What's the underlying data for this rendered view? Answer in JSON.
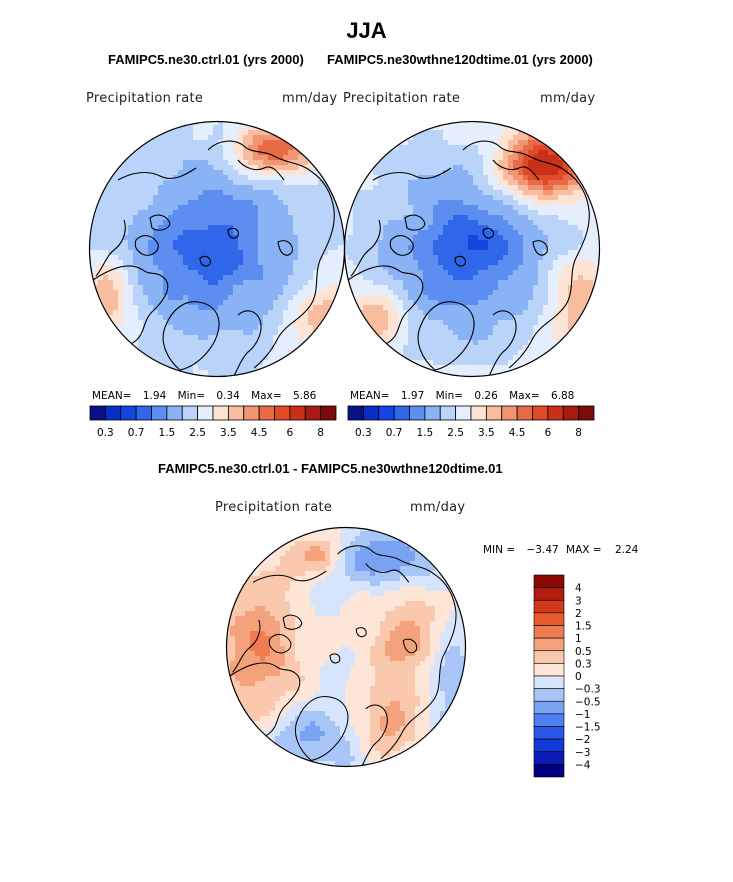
{
  "figure": {
    "title": "JJA",
    "panel_titles": {
      "left": "FAMIPC5.ne30.ctrl.01 (yrs 2000)",
      "right": "FAMIPC5.ne30wthne120dtime.01 (yrs 2000)",
      "diff": "FAMIPC5.ne30.ctrl.01 - FAMIPC5.ne30wthne120dtime.01"
    }
  },
  "colors": {
    "land_outline": "#000000",
    "map_border": "#000000",
    "background": "#ffffff"
  },
  "chart_data": [
    {
      "type": "heatmap",
      "projection": "north-polar-stereographic",
      "variable": "Precipitation rate",
      "units": "mm/day",
      "stats": {
        "mean_label": "MEAN=",
        "mean": "1.94",
        "min_label": "Min=",
        "min": "0.34",
        "max_label": "Max=",
        "max": "5.86"
      },
      "levels": [
        0.3,
        0.5,
        0.7,
        1,
        1.5,
        2,
        2.5,
        3,
        3.5,
        4,
        4.5,
        5,
        6,
        7,
        8
      ],
      "level_labels": [
        "0.3",
        "0.7",
        "1.5",
        "2.5",
        "3.5",
        "4.5",
        "6",
        "8"
      ],
      "palette": [
        "#08118a",
        "#0a2ec4",
        "#1147e0",
        "#2f66ea",
        "#5b8ef0",
        "#8ab3f5",
        "#b9d3f9",
        "#e4eefc",
        "#fde3d3",
        "#f8bd9f",
        "#f19573",
        "#e86b48",
        "#e04a26",
        "#c9301a",
        "#a81a12",
        "#7d0a0a"
      ],
      "field_summary": "Predominantly blue (0.5–2 mm/day) over the Arctic Ocean and continents; light blue/white over subarctic oceans; orange-red (4–6 mm/day) over East Siberia coast and southern margins"
    },
    {
      "type": "heatmap",
      "projection": "north-polar-stereographic",
      "variable": "Precipitation rate",
      "units": "mm/day",
      "stats": {
        "mean_label": "MEAN=",
        "mean": "1.97",
        "min_label": "Min=",
        "min": "0.26",
        "max_label": "Max=",
        "max": "6.88"
      },
      "levels": [
        0.3,
        0.5,
        0.7,
        1,
        1.5,
        2,
        2.5,
        3,
        3.5,
        4,
        4.5,
        5,
        6,
        7,
        8
      ],
      "level_labels": [
        "0.3",
        "0.7",
        "1.5",
        "2.5",
        "3.5",
        "4.5",
        "6",
        "8"
      ],
      "palette": [
        "#08118a",
        "#0a2ec4",
        "#1147e0",
        "#2f66ea",
        "#5b8ef0",
        "#8ab3f5",
        "#b9d3f9",
        "#e4eefc",
        "#fde3d3",
        "#f8bd9f",
        "#f19573",
        "#e86b48",
        "#e04a26",
        "#c9301a",
        "#a81a12",
        "#7d0a0a"
      ],
      "field_summary": "Similar to control with stronger red maximum (up to ~6.9 mm/day) over East Siberia / Okhotsk region"
    },
    {
      "type": "heatmap",
      "projection": "north-polar-stereographic",
      "variable": "Precipitation rate",
      "units": "mm/day",
      "stats": {
        "min_label": "MIN =",
        "min": "−3.47",
        "max_label": "MAX =",
        "max": "2.24"
      },
      "levels": [
        -4,
        -3,
        -2,
        -1.5,
        -1,
        -0.5,
        -0.3,
        0,
        0.3,
        0.5,
        1,
        1.5,
        2,
        3,
        4
      ],
      "level_labels": [
        "4",
        "3",
        "2",
        "1.5",
        "1",
        "0.5",
        "0.3",
        "0",
        "−0.3",
        "−0.5",
        "−1",
        "−1.5",
        "−2",
        "−3",
        "−4"
      ],
      "palette": [
        "#000080",
        "#0a1cb4",
        "#1238d8",
        "#2a55e6",
        "#4f7ef0",
        "#7aa2f3",
        "#a8c5f7",
        "#d6e5fb",
        "#fde6d8",
        "#f9c8ad",
        "#f4a27c",
        "#ef7b50",
        "#e85a2c",
        "#d2391a",
        "#b01d0f",
        "#8a0a06"
      ],
      "field_summary": "Mixed differences: red (ctrl wetter) over North Atlantic, Europe and parts of Siberia; blue (ctrl drier) over Pacific sector and North America"
    }
  ]
}
